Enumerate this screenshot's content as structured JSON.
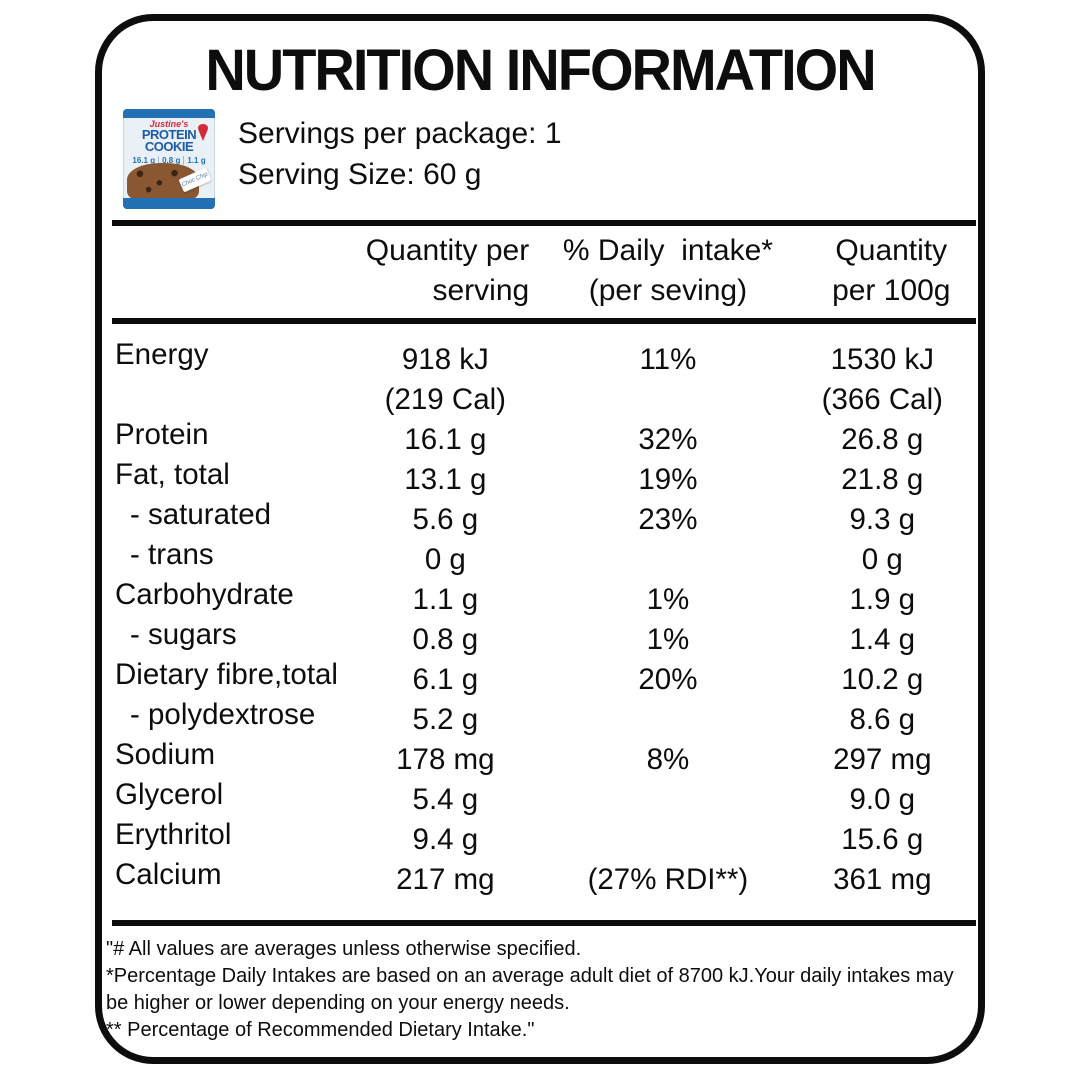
{
  "title": "NUTRITION INFORMATION",
  "package": {
    "brand": "Justine's",
    "name_line1": "PROTEIN",
    "name_line2": "COOKIE",
    "badges": [
      "16.1 g",
      "0.8 g",
      "1.1 g"
    ],
    "flavor_tag": "Choc Chip",
    "colors": {
      "package_blue": "#2470b4",
      "brand_red": "#d42b3a",
      "cookie_brown": "#8a5733",
      "chip_dark": "#3c2515"
    }
  },
  "serving_info": {
    "servings_per_package": "Servings per package: 1",
    "serving_size": "Serving Size: 60 g"
  },
  "table": {
    "headers": {
      "quantity_per_serving": "Quantity per\nserving",
      "daily_intake": "% Daily  intake*\n(per seving)",
      "quantity_per_100g": "Quantity\nper 100g"
    },
    "rows": [
      {
        "label": "Energy",
        "indent": false,
        "qty": "918 kJ\n(219 Cal)",
        "di": "11%",
        "per100": "1530 kJ\n(366 Cal)"
      },
      {
        "label": "Protein",
        "indent": false,
        "qty": "16.1 g",
        "di": "32%",
        "per100": "26.8 g"
      },
      {
        "label": "Fat, total",
        "indent": false,
        "qty": "13.1 g",
        "di": "19%",
        "per100": "21.8 g"
      },
      {
        "label": "- saturated",
        "indent": true,
        "qty": "5.6 g",
        "di": "23%",
        "per100": "9.3 g"
      },
      {
        "label": "- trans",
        "indent": true,
        "qty": "0 g",
        "di": "",
        "per100": "0 g"
      },
      {
        "label": "Carbohydrate",
        "indent": false,
        "qty": "1.1 g",
        "di": "1%",
        "per100": "1.9 g"
      },
      {
        "label": "- sugars",
        "indent": true,
        "qty": "0.8 g",
        "di": "1%",
        "per100": "1.4 g"
      },
      {
        "label": "Dietary fibre,total",
        "indent": false,
        "qty": "6.1 g",
        "di": "20%",
        "per100": "10.2 g"
      },
      {
        "label": "- polydextrose",
        "indent": true,
        "qty": "5.2 g",
        "di": "",
        "per100": "8.6 g"
      },
      {
        "label": "Sodium",
        "indent": false,
        "qty": "178 mg",
        "di": "8%",
        "per100": "297 mg"
      },
      {
        "label": "Glycerol",
        "indent": false,
        "qty": "5.4 g",
        "di": "",
        "per100": "9.0 g"
      },
      {
        "label": "Erythritol",
        "indent": false,
        "qty": "9.4 g",
        "di": "",
        "per100": "15.6 g"
      },
      {
        "label": "Calcium",
        "indent": false,
        "qty": "217 mg",
        "di": "(27% RDI**)",
        "per100": "361 mg"
      }
    ]
  },
  "footnotes": [
    "\"# All values are averages unless otherwise specified.",
    "*Percentage Daily Intakes are based on an average adult diet of 8700 kJ.Your daily intakes may",
    "be higher or lower depending on your energy needs.",
    "** Percentage of Recommended Dietary Intake.\""
  ]
}
